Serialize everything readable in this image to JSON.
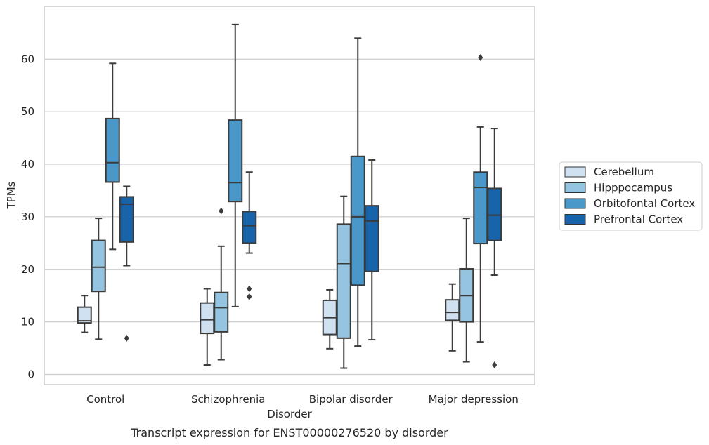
{
  "chart_data": {
    "type": "box",
    "caption": "Transcript expression for ENST00000276520 by disorder",
    "xlabel": "Disorder",
    "ylabel": "TPMs",
    "ylim": [
      -2,
      70
    ],
    "yticks": [
      0,
      10,
      20,
      30,
      40,
      50,
      60
    ],
    "grid": "horizontal",
    "legend_position": "right",
    "categories": [
      "Control",
      "Schizophrenia",
      "Bipolar disorder",
      "Major depression"
    ],
    "series": [
      {
        "name": "Cerebellum",
        "color": "#d0e1f2",
        "boxes": [
          {
            "whisker_low": 8.0,
            "q1": 9.8,
            "median": 10.2,
            "q3": 12.8,
            "whisker_high": 15.0,
            "outliers": []
          },
          {
            "whisker_low": 1.8,
            "q1": 7.8,
            "median": 10.4,
            "q3": 13.6,
            "whisker_high": 16.3,
            "outliers": []
          },
          {
            "whisker_low": 4.9,
            "q1": 7.6,
            "median": 10.8,
            "q3": 14.1,
            "whisker_high": 16.1,
            "outliers": []
          },
          {
            "whisker_low": 4.5,
            "q1": 10.3,
            "median": 11.8,
            "q3": 14.2,
            "whisker_high": 17.2,
            "outliers": []
          }
        ]
      },
      {
        "name": "Hipppocampus",
        "color": "#94c4df",
        "boxes": [
          {
            "whisker_low": 6.7,
            "q1": 15.8,
            "median": 20.4,
            "q3": 25.5,
            "whisker_high": 29.7,
            "outliers": []
          },
          {
            "whisker_low": 2.8,
            "q1": 8.1,
            "median": 12.7,
            "q3": 15.6,
            "whisker_high": 24.4,
            "outliers": [
              31.1
            ]
          },
          {
            "whisker_low": 1.2,
            "q1": 6.9,
            "median": 21.1,
            "q3": 28.6,
            "whisker_high": 33.9,
            "outliers": []
          },
          {
            "whisker_low": 2.4,
            "q1": 10.0,
            "median": 15.0,
            "q3": 20.1,
            "whisker_high": 29.7,
            "outliers": []
          }
        ]
      },
      {
        "name": "Orbitofontal Cortex",
        "color": "#4a98c9",
        "boxes": [
          {
            "whisker_low": 23.8,
            "q1": 36.6,
            "median": 40.3,
            "q3": 48.7,
            "whisker_high": 59.2,
            "outliers": []
          },
          {
            "whisker_low": 12.9,
            "q1": 32.9,
            "median": 36.5,
            "q3": 48.4,
            "whisker_high": 66.6,
            "outliers": []
          },
          {
            "whisker_low": 5.4,
            "q1": 17.0,
            "median": 30.0,
            "q3": 41.5,
            "whisker_high": 64.0,
            "outliers": []
          },
          {
            "whisker_low": 6.2,
            "q1": 24.9,
            "median": 35.6,
            "q3": 38.5,
            "whisker_high": 47.1,
            "outliers": [
              60.3
            ]
          }
        ]
      },
      {
        "name": "Prefrontal Cortex",
        "color": "#1764ab",
        "boxes": [
          {
            "whisker_low": 20.7,
            "q1": 25.2,
            "median": 32.4,
            "q3": 33.8,
            "whisker_high": 35.8,
            "outliers": [
              6.9
            ]
          },
          {
            "whisker_low": 23.1,
            "q1": 25.0,
            "median": 28.3,
            "q3": 31.0,
            "whisker_high": 38.5,
            "outliers": [
              16.3,
              14.8
            ]
          },
          {
            "whisker_low": 6.6,
            "q1": 19.6,
            "median": 29.2,
            "q3": 32.1,
            "whisker_high": 40.8,
            "outliers": []
          },
          {
            "whisker_low": 18.9,
            "q1": 25.5,
            "median": 30.3,
            "q3": 35.4,
            "whisker_high": 46.8,
            "outliers": [
              1.8
            ]
          }
        ]
      }
    ]
  }
}
